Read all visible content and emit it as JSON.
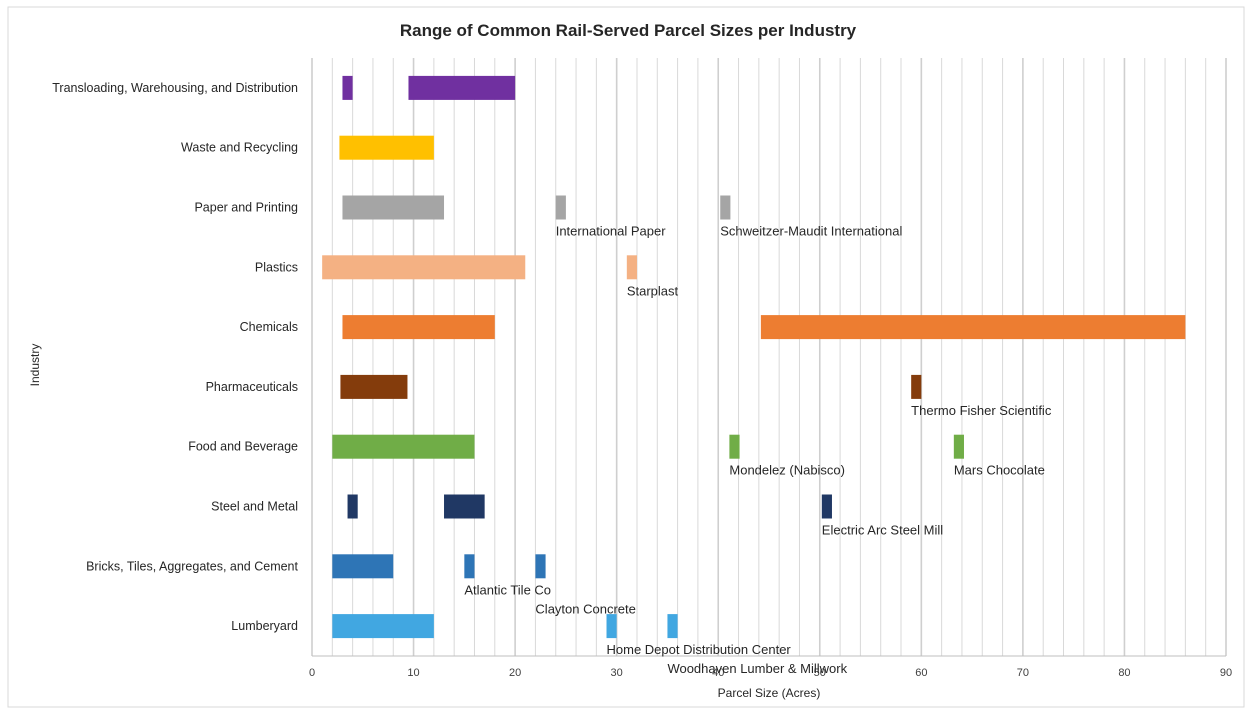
{
  "chart_data": {
    "type": "bar",
    "orientation": "horizontal-range",
    "title": "Range of Common Rail-Served Parcel Sizes per Industry",
    "xlabel": "Parcel Size (Acres)",
    "ylabel": "Industry",
    "xlim": [
      0,
      90
    ],
    "xticks": [
      "0",
      "10",
      "20",
      "30",
      "40",
      "50",
      "60",
      "70",
      "80",
      "90"
    ],
    "grid": true,
    "categories": [
      "Transloading, Warehousing, and Distribution",
      "Waste and Recycling",
      "Paper and Printing",
      "Plastics",
      "Chemicals",
      "Pharmaceuticals",
      "Food and Beverage",
      "Steel and Metal",
      "Bricks, Tiles, Aggregates, and Cement",
      "Lumberyard"
    ],
    "series": [
      {
        "category": "Transloading, Warehousing, and Distribution",
        "color": "#7030a0",
        "ranges": [
          {
            "start": 3,
            "end": 4,
            "label": ""
          },
          {
            "start": 9.5,
            "end": 20,
            "label": ""
          }
        ]
      },
      {
        "category": "Waste and Recycling",
        "color": "#ffc000",
        "ranges": [
          {
            "start": 2.7,
            "end": 12,
            "label": ""
          }
        ]
      },
      {
        "category": "Paper and Printing",
        "color": "#a5a5a5",
        "ranges": [
          {
            "start": 3,
            "end": 13,
            "label": ""
          },
          {
            "start": 24,
            "end": 25,
            "label": "International Paper"
          },
          {
            "start": 40.2,
            "end": 41.2,
            "label": "Schweitzer-Maudit International"
          }
        ]
      },
      {
        "category": "Plastics",
        "color": "#f4b183",
        "ranges": [
          {
            "start": 1,
            "end": 21,
            "label": ""
          },
          {
            "start": 31,
            "end": 32,
            "label": "Starplast"
          }
        ]
      },
      {
        "category": "Chemicals",
        "color": "#ed7d31",
        "ranges": [
          {
            "start": 3,
            "end": 18,
            "label": ""
          },
          {
            "start": 44.2,
            "end": 86,
            "label": ""
          }
        ]
      },
      {
        "category": "Pharmaceuticals",
        "color": "#843c0c",
        "ranges": [
          {
            "start": 2.8,
            "end": 9.4,
            "label": ""
          },
          {
            "start": 59,
            "end": 60,
            "label": "Thermo Fisher Scientific"
          }
        ]
      },
      {
        "category": "Food and Beverage",
        "color": "#70ad47",
        "ranges": [
          {
            "start": 2,
            "end": 16,
            "label": ""
          },
          {
            "start": 41.1,
            "end": 42.1,
            "label": "Mondelez (Nabisco)"
          },
          {
            "start": 63.2,
            "end": 64.2,
            "label": "Mars Chocolate"
          }
        ]
      },
      {
        "category": "Steel and Metal",
        "color": "#203864",
        "ranges": [
          {
            "start": 3.5,
            "end": 4.5,
            "label": ""
          },
          {
            "start": 13,
            "end": 17,
            "label": ""
          },
          {
            "start": 50.2,
            "end": 51.2,
            "label": "Electric Arc Steel Mill"
          }
        ]
      },
      {
        "category": "Bricks, Tiles, Aggregates, and Cement",
        "color": "#2e75b6",
        "ranges": [
          {
            "start": 2,
            "end": 8,
            "label": ""
          },
          {
            "start": 15,
            "end": 16,
            "label": "Atlantic Tile Co"
          },
          {
            "start": 22,
            "end": 23,
            "label": "Clayton Concrete"
          }
        ]
      },
      {
        "category": "Lumberyard",
        "color": "#41a7e1",
        "ranges": [
          {
            "start": 2,
            "end": 12,
            "label": ""
          },
          {
            "start": 29,
            "end": 30,
            "label": "Home Depot Distribution Center"
          },
          {
            "start": 35,
            "end": 36,
            "label": "Woodhaven Lumber & Millwork"
          }
        ]
      }
    ]
  }
}
